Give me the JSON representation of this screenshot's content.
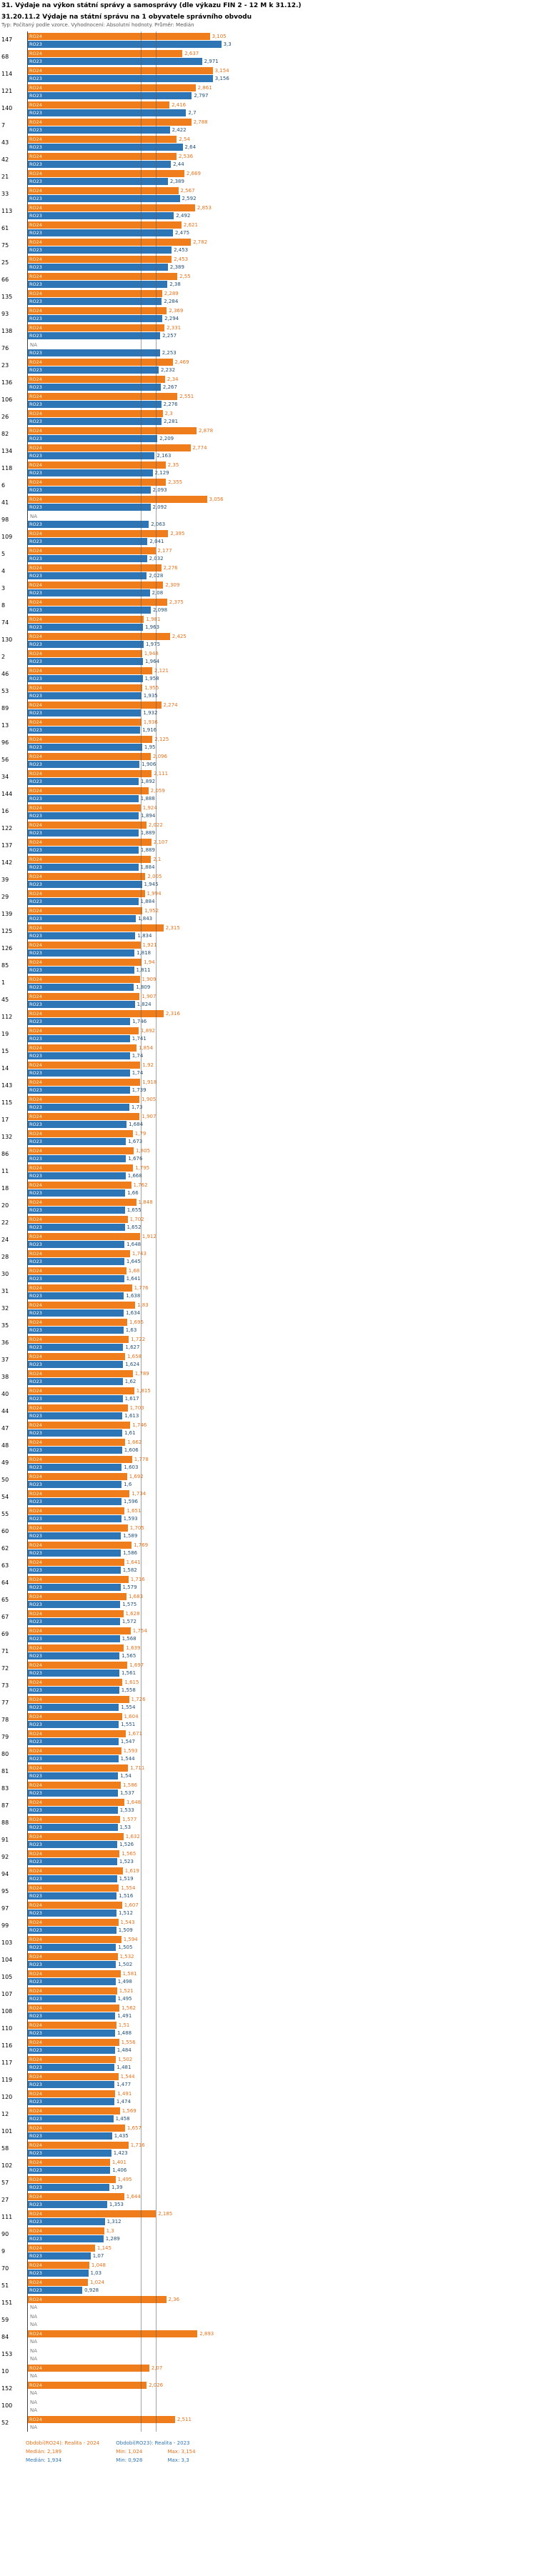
{
  "header": {
    "title": "31. Výdaje na výkon státní správy a samosprávy (dle výkazu FIN 2 - 12 M k 31.12.)",
    "subtitle": "31.20.11.2 Výdaje na státní správu na 1 obyvatele správního obvodu",
    "note": "Typ: Počítaný podle vzorce. Vyhodnocení: Absolutní hodnoty. Průměr: Medián"
  },
  "colors": {
    "bar_2024": "#ef7d1c",
    "bar_2023": "#2e75b6",
    "value_2024": "#e8721b",
    "value_2023": "#1f4e79",
    "median_line": "#595959"
  },
  "chart_data": {
    "type": "bar",
    "orientation": "horizontal",
    "na_text": "NA",
    "series": [
      {
        "name": "RO24",
        "year": "2024",
        "color": "#ef7d1c",
        "label_color": "#fdf3cf",
        "value_color": "#e8721b"
      },
      {
        "name": "RO23",
        "year": "2023",
        "color": "#2e75b6",
        "label_color": "#ffffff",
        "value_color": "#1f4e79"
      }
    ],
    "median_lines": [
      {
        "series": "RO24",
        "value": "2,189"
      },
      {
        "series": "RO23",
        "value": "1,934"
      }
    ],
    "rows": [
      [
        "147",
        "3,105",
        "3,3"
      ],
      [
        "68",
        "2,637",
        "2,971"
      ],
      [
        "114",
        "3,154",
        "3,156"
      ],
      [
        "121",
        "2,861",
        "2,797"
      ],
      [
        "140",
        "2,416",
        "2,7"
      ],
      [
        "7",
        "2,788",
        "2,422"
      ],
      [
        "43",
        "2,54",
        "2,64"
      ],
      [
        "42",
        "2,536",
        "2,44"
      ],
      [
        "21",
        "2,669",
        "2,389"
      ],
      [
        "33",
        "2,567",
        "2,592"
      ],
      [
        "113",
        "2,853",
        "2,492"
      ],
      [
        "61",
        "2,621",
        "2,475"
      ],
      [
        "75",
        "2,782",
        "2,453"
      ],
      [
        "25",
        "2,453",
        "2,389"
      ],
      [
        "66",
        "2,55",
        "2,38"
      ],
      [
        "135",
        "2,289",
        "2,284"
      ],
      [
        "93",
        "2,369",
        "2,294"
      ],
      [
        "138",
        "2,331",
        "2,257"
      ],
      [
        "76",
        "NA",
        "2,253"
      ],
      [
        "23",
        "2,469",
        "2,232"
      ],
      [
        "136",
        "2,34",
        "2,267"
      ],
      [
        "106",
        "2,551",
        "2,276"
      ],
      [
        "26",
        "2,3",
        "2,281"
      ],
      [
        "82",
        "2,878",
        "2,209"
      ],
      [
        "134",
        "2,774",
        "2,163"
      ],
      [
        "118",
        "2,35",
        "2,129"
      ],
      [
        "6",
        "2,355",
        "2,093"
      ],
      [
        "41",
        "3,056",
        "2,092"
      ],
      [
        "98",
        "NA",
        "2,063"
      ],
      [
        "109",
        "2,395",
        "2,041"
      ],
      [
        "5",
        "2,177",
        "2,032"
      ],
      [
        "4",
        "2,276",
        "2,028"
      ],
      [
        "3",
        "2,309",
        "2,08"
      ],
      [
        "8",
        "2,375",
        "2,098"
      ],
      [
        "74",
        "1,981",
        "1,963"
      ],
      [
        "130",
        "2,425",
        "1,975"
      ],
      [
        "2",
        "1,948",
        "1,964"
      ],
      [
        "46",
        "2,121",
        "1,958"
      ],
      [
        "53",
        "1,955",
        "1,935"
      ],
      [
        "89",
        "2,274",
        "1,932"
      ],
      [
        "13",
        "1,936",
        "1,916"
      ],
      [
        "96",
        "2,125",
        "1,95"
      ],
      [
        "56",
        "2,096",
        "1,906"
      ],
      [
        "34",
        "2,111",
        "1,892"
      ],
      [
        "144",
        "2,059",
        "1,888"
      ],
      [
        "16",
        "1,924",
        "1,894"
      ],
      [
        "122",
        "2,022",
        "1,889"
      ],
      [
        "137",
        "2,107",
        "1,889"
      ],
      [
        "142",
        "2,1",
        "1,884"
      ],
      [
        "39",
        "2,005",
        "1,945"
      ],
      [
        "29",
        "1,994",
        "1,884"
      ],
      [
        "139",
        "1,952",
        "1,843"
      ],
      [
        "125",
        "2,315",
        "1,834"
      ],
      [
        "126",
        "1,921",
        "1,818"
      ],
      [
        "85",
        "1,94",
        "1,811"
      ],
      [
        "1",
        "1,909",
        "1,809"
      ],
      [
        "45",
        "1,907",
        "1,824"
      ],
      [
        "112",
        "2,316",
        "1,746"
      ],
      [
        "19",
        "1,892",
        "1,741"
      ],
      [
        "15",
        "1,854",
        "1,74"
      ],
      [
        "14",
        "1,92",
        "1,74"
      ],
      [
        "143",
        "1,918",
        "1,739"
      ],
      [
        "115",
        "1,905",
        "1,73"
      ],
      [
        "17",
        "1,907",
        "1,684"
      ],
      [
        "132",
        "1,79",
        "1,673"
      ],
      [
        "86",
        "1,805",
        "1,676"
      ],
      [
        "11",
        "1,795",
        "1,668"
      ],
      [
        "18",
        "1,762",
        "1,66"
      ],
      [
        "20",
        "1,848",
        "1,655"
      ],
      [
        "22",
        "1,702",
        "1,652"
      ],
      [
        "24",
        "1,912",
        "1,648"
      ],
      [
        "28",
        "1,743",
        "1,645"
      ],
      [
        "30",
        "1,68",
        "1,641"
      ],
      [
        "31",
        "1,776",
        "1,638"
      ],
      [
        "32",
        "1,83",
        "1,634"
      ],
      [
        "35",
        "1,695",
        "1,63"
      ],
      [
        "36",
        "1,722",
        "1,627"
      ],
      [
        "37",
        "1,658",
        "1,624"
      ],
      [
        "38",
        "1,789",
        "1,62"
      ],
      [
        "40",
        "1,815",
        "1,617"
      ],
      [
        "44",
        "1,703",
        "1,613"
      ],
      [
        "47",
        "1,746",
        "1,61"
      ],
      [
        "48",
        "1,662",
        "1,606"
      ],
      [
        "49",
        "1,778",
        "1,603"
      ],
      [
        "50",
        "1,692",
        "1,6"
      ],
      [
        "54",
        "1,734",
        "1,596"
      ],
      [
        "55",
        "1,651",
        "1,593"
      ],
      [
        "60",
        "1,705",
        "1,589"
      ],
      [
        "62",
        "1,769",
        "1,586"
      ],
      [
        "63",
        "1,641",
        "1,582"
      ],
      [
        "64",
        "1,716",
        "1,579"
      ],
      [
        "65",
        "1,683",
        "1,575"
      ],
      [
        "67",
        "1,628",
        "1,572"
      ],
      [
        "69",
        "1,754",
        "1,568"
      ],
      [
        "71",
        "1,639",
        "1,565"
      ],
      [
        "72",
        "1,697",
        "1,561"
      ],
      [
        "73",
        "1,615",
        "1,558"
      ],
      [
        "77",
        "1,726",
        "1,554"
      ],
      [
        "78",
        "1,604",
        "1,551"
      ],
      [
        "79",
        "1,671",
        "1,547"
      ],
      [
        "80",
        "1,593",
        "1,544"
      ],
      [
        "81",
        "1,711",
        "1,54"
      ],
      [
        "83",
        "1,586",
        "1,537"
      ],
      [
        "87",
        "1,648",
        "1,533"
      ],
      [
        "88",
        "1,577",
        "1,53"
      ],
      [
        "91",
        "1,632",
        "1,526"
      ],
      [
        "92",
        "1,565",
        "1,523"
      ],
      [
        "94",
        "1,619",
        "1,519"
      ],
      [
        "95",
        "1,554",
        "1,516"
      ],
      [
        "97",
        "1,607",
        "1,512"
      ],
      [
        "99",
        "1,543",
        "1,509"
      ],
      [
        "103",
        "1,594",
        "1,505"
      ],
      [
        "104",
        "1,532",
        "1,502"
      ],
      [
        "105",
        "1,581",
        "1,498"
      ],
      [
        "107",
        "1,521",
        "1,495"
      ],
      [
        "108",
        "1,562",
        "1,491"
      ],
      [
        "110",
        "1,51",
        "1,488"
      ],
      [
        "116",
        "1,556",
        "1,484"
      ],
      [
        "117",
        "1,502",
        "1,481"
      ],
      [
        "119",
        "1,544",
        "1,477"
      ],
      [
        "120",
        "1,491",
        "1,474"
      ],
      [
        "12",
        "1,569",
        "1,458"
      ],
      [
        "101",
        "1,657",
        "1,435"
      ],
      [
        "58",
        "1,716",
        "1,423"
      ],
      [
        "102",
        "1,401",
        "1,406"
      ],
      [
        "57",
        "1,495",
        "1,39"
      ],
      [
        "27",
        "1,644",
        "1,353"
      ],
      [
        "111",
        "2,185",
        "1,312"
      ],
      [
        "90",
        "1,3",
        "1,289"
      ],
      [
        "9",
        "1,145",
        "1,07"
      ],
      [
        "70",
        "1,048",
        "1,03"
      ],
      [
        "51",
        "1,024",
        "0,928"
      ],
      [
        "151",
        "2,36",
        "NA"
      ],
      [
        "59",
        "NA",
        "NA"
      ],
      [
        "84",
        "2,893",
        "NA"
      ],
      [
        "153",
        "NA",
        "NA"
      ],
      [
        "10",
        "2,07",
        "NA"
      ],
      [
        "152",
        "2,026",
        "NA"
      ],
      [
        "100",
        "NA",
        "NA"
      ],
      [
        "52",
        "2,511",
        "NA"
      ]
    ]
  },
  "footer": {
    "series": [
      {
        "label": "Období(RO24): Realita - 2024",
        "median": "Medián: 2,189",
        "min": "Min: 1,024",
        "max": "Max: 3,154"
      },
      {
        "label": "Období(RO23): Realita - 2023",
        "median": "Medián: 1,934",
        "min": "Min: 0,928",
        "max": "Max: 3,3"
      }
    ]
  }
}
